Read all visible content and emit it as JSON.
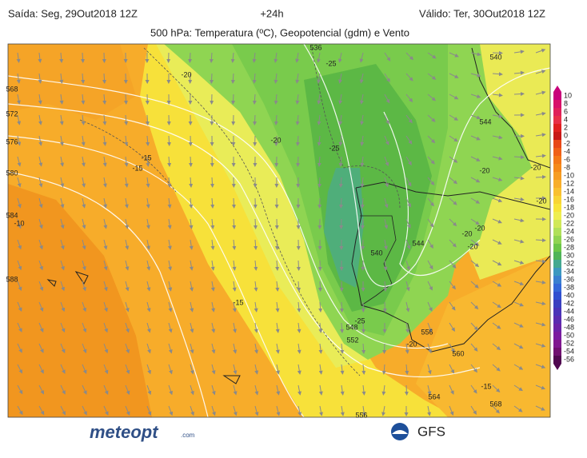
{
  "header": {
    "start": "Saída: Seg, 29Out2018 12Z",
    "lead": "+24h",
    "valid": "Válido: Ter, 30Out2018 12Z",
    "title": "500 hPa: Temperatura (ºC), Geopotencial (gdm) e Vento"
  },
  "colorbar": {
    "values": [
      10,
      8,
      6,
      4,
      2,
      0,
      -2,
      -4,
      -6,
      -8,
      -10,
      -12,
      -14,
      -16,
      -18,
      -20,
      -22,
      -24,
      -26,
      -28,
      -30,
      -32,
      -34,
      -36,
      -38,
      -40,
      -42,
      -44,
      -46,
      -48,
      -50,
      -52,
      -54,
      -56
    ],
    "colors": [
      "#c8007a",
      "#d8106a",
      "#e0205a",
      "#e83048",
      "#e02020",
      "#c81818",
      "#e84818",
      "#f06018",
      "#f47818",
      "#f58a1a",
      "#f69c22",
      "#f8ae2a",
      "#f9c030",
      "#f8d435",
      "#f7e43a",
      "#eeee50",
      "#d0e858",
      "#b0e05a",
      "#90d452",
      "#6cc648",
      "#50b458",
      "#44a890",
      "#3c98c0",
      "#3a80d0",
      "#3468d8",
      "#3050d0",
      "#3a40c0",
      "#4a34b8",
      "#5a2cb0",
      "#6a24a8",
      "#7a1ca0",
      "#801890",
      "#701070",
      "#500850"
    ]
  },
  "map_labels": [
    "536",
    "-25",
    "-20",
    "540",
    "544",
    "-20",
    "-25",
    "-15",
    "-15",
    "-20",
    "-20",
    "-20",
    "-20",
    "-20",
    "-20",
    "544",
    "540",
    "-10",
    "-15",
    "-25",
    "548",
    "552",
    "556",
    "-20",
    "560",
    "-15",
    "564",
    "568",
    "556",
    "568",
    "572",
    "576",
    "580",
    "584",
    "588"
  ],
  "footer": {
    "brand": "meteopt",
    "domain": ".com",
    "model": "GFS"
  }
}
